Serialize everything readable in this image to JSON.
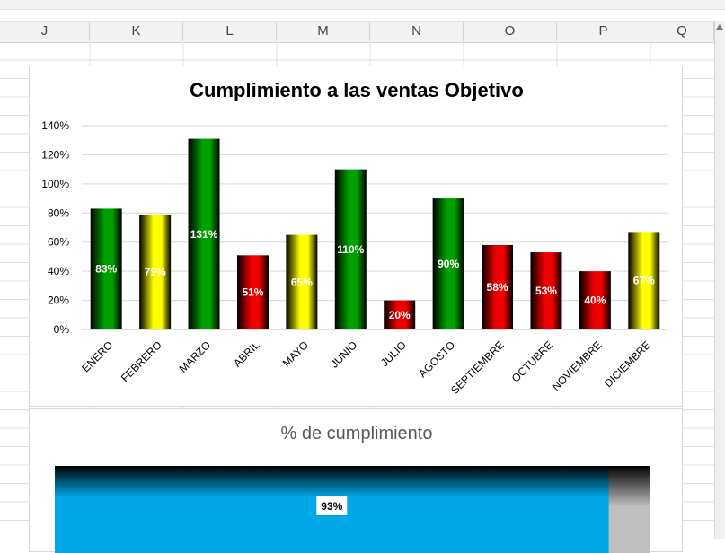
{
  "spreadsheet": {
    "columns": [
      "J",
      "K",
      "L",
      "M",
      "N",
      "O",
      "P",
      "Q"
    ]
  },
  "chart_data": [
    {
      "type": "bar",
      "title": "Cumplimiento a las ventas Objetivo",
      "categories": [
        "ENERO",
        "FEBRERO",
        "MARZO",
        "ABRIL",
        "MAYO",
        "JUNIO",
        "JULIO",
        "AGOSTO",
        "SEPTIEMBRE",
        "OCTUBRE",
        "NOVIEMBRE",
        "DICIEMBRE"
      ],
      "values": [
        83,
        79,
        131,
        51,
        65,
        110,
        20,
        90,
        58,
        53,
        40,
        67
      ],
      "data_labels": [
        "83%",
        "79%",
        "131%",
        "51%",
        "65%",
        "110%",
        "20%",
        "90%",
        "58%",
        "53%",
        "40%",
        "67%"
      ],
      "bar_colors": [
        "green",
        "yellow",
        "green",
        "red",
        "yellow",
        "green",
        "red",
        "green",
        "red",
        "red",
        "red",
        "yellow"
      ],
      "color_map": {
        "green": "#00a000",
        "yellow": "#ffff00",
        "red": "#ee0000"
      },
      "yticks": [
        "0%",
        "20%",
        "40%",
        "60%",
        "80%",
        "100%",
        "120%",
        "140%"
      ],
      "ylim": [
        0,
        140
      ],
      "grid": true,
      "legend": "none"
    },
    {
      "type": "bar",
      "title": "% de cumplimiento",
      "values": [
        93
      ],
      "data_labels": [
        "93%"
      ],
      "xlim": [
        0,
        100
      ],
      "fill_color": "#00a8e8",
      "remainder_color": "#bfbfbf"
    }
  ]
}
